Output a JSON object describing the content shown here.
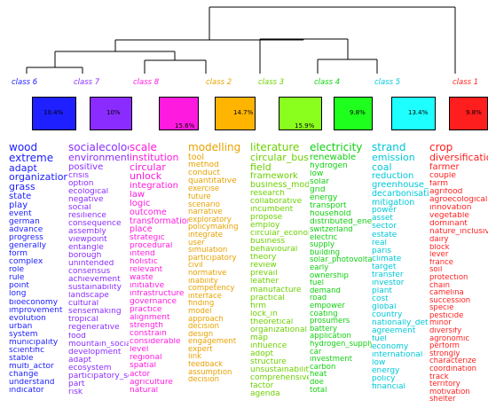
{
  "clusters": [
    {
      "label": "class 6",
      "percent": "10.4%",
      "color": "#1e20ff",
      "label_color": "#1e20ff",
      "words": [
        "wood",
        "extreme",
        "adapt",
        "organization",
        "grass",
        "state",
        "play",
        "event",
        "german",
        "advance",
        "progress",
        "generally",
        "form",
        "complex",
        "role",
        "rule",
        "point",
        "long",
        "bioeconomy",
        "improvement",
        "evolution",
        "urban",
        "system",
        "municipality",
        "scientific",
        "stable",
        "multi_actor",
        "change",
        "understand",
        "indicator"
      ]
    },
    {
      "label": "class 7",
      "percent": "10%",
      "color": "#8a2cff",
      "label_color": "#8a2cff",
      "words": [
        "socialecolog",
        "environment",
        "positive",
        "crisis",
        "option",
        "ecological",
        "negative",
        "social",
        "resilience",
        "consequence",
        "assembly",
        "viewpoint",
        "entangle",
        "borough",
        "unintended",
        "consensus",
        "achievement",
        "sustainability",
        "landscape",
        "cultural",
        "sensemaking",
        "tropical",
        "regenerative",
        "food",
        "mountain_social_",
        "development",
        "adapt",
        "ecosystem",
        "participatory_sce",
        "part",
        "risk"
      ]
    },
    {
      "label": "class 8",
      "percent": "15.6%",
      "color": "#ff1adf",
      "label_color": "#ff1adf",
      "words": [
        "scale",
        "institution",
        "circular",
        "unlock",
        "integration",
        "law",
        "logic",
        "outcome",
        "transformation",
        "place",
        "strategic",
        "procedural",
        "intend",
        "holistic",
        "relevant",
        "waste",
        "initiative",
        "infrastructure",
        "governance",
        "practice",
        "alignment",
        "strength",
        "constrain",
        "considerable",
        "level",
        "regional",
        "spatial",
        "actor",
        "agriculture",
        "natural"
      ]
    },
    {
      "label": "class 2",
      "percent": "14.7%",
      "color": "#ffb400",
      "label_color": "#e8a200",
      "words": [
        "modelling",
        "tool",
        "method",
        "conduct",
        "quantitative",
        "exercise",
        "future",
        "scenario",
        "narrative",
        "exploratory",
        "policymaking",
        "integrate",
        "user",
        "simulation",
        "participatory",
        "civil",
        "normative",
        "inability",
        "competency",
        "interface",
        "finding",
        "model",
        "approach",
        "decision",
        "design",
        "engagement",
        "expert",
        "link",
        "feedback",
        "assumption",
        "decision"
      ]
    },
    {
      "label": "class 3",
      "percent": "15.9%",
      "color": "#8aff1e",
      "label_color": "#6cd000",
      "words": [
        "literature",
        "circular_busin",
        "field",
        "framework",
        "business_mode",
        "research",
        "collaborative",
        "incumbent",
        "propose",
        "employ",
        "circular_econom",
        "business",
        "behavioural",
        "theory",
        "review",
        "prevail",
        "leather",
        "manufacture",
        "practical",
        "firm",
        "lock_in",
        "theoretical",
        "organizational",
        "map",
        "influence",
        "adopt",
        "structure",
        "unsustainability",
        "comprehensive",
        "factor",
        "agenda"
      ]
    },
    {
      "label": "class 4",
      "percent": "9.8%",
      "color": "#1eff1e",
      "label_color": "#10d010",
      "words": [
        "electricity",
        "renewable",
        "hydrogen",
        "low",
        "solar",
        "grid",
        "energy",
        "transport",
        "household",
        "distributed_energ",
        "switzerland",
        "electric",
        "supply",
        "building",
        "solar_photovoltai",
        "early",
        "ownership",
        "fuel",
        "demand",
        "road",
        "empower",
        "coating",
        "prosumers",
        "battery",
        "application",
        "hydrogen_supply_c",
        "car",
        "investment",
        "carbon",
        "heat",
        "doe",
        "total"
      ]
    },
    {
      "label": "class 5",
      "percent": "13.4%",
      "color": "#1effff",
      "label_color": "#00c8d8",
      "words": [
        "strand",
        "emission",
        "coal",
        "reduction",
        "greenhouse_g",
        "decarbonisatio",
        "mitigation",
        "power",
        "asset",
        "sector",
        "estate",
        "real",
        "paris",
        "climate",
        "target",
        "transfer",
        "investor",
        "plant",
        "cost",
        "global",
        "country",
        "nationally_determ",
        "agreement",
        "fuel",
        "economy",
        "international",
        "low",
        "energy",
        "policy",
        "financial"
      ]
    },
    {
      "label": "class 1",
      "percent": "9.8%",
      "color": "#ff1e1e",
      "label_color": "#ff1e1e",
      "words": [
        "crop",
        "diversification",
        "farmer",
        "couple",
        "farm",
        "agrifood",
        "agroecological",
        "innovation",
        "vegetable",
        "dominant",
        "nature_inclusive_",
        "dairy",
        "block",
        "lever",
        "france",
        "soil",
        "protection",
        "chain",
        "camelina",
        "succession",
        "specie",
        "pesticide",
        "minor",
        "diversify",
        "agronomic",
        "perform",
        "strongly",
        "characterize",
        "coordination",
        "track",
        "territory",
        "motivation",
        "shelter"
      ]
    }
  ]
}
